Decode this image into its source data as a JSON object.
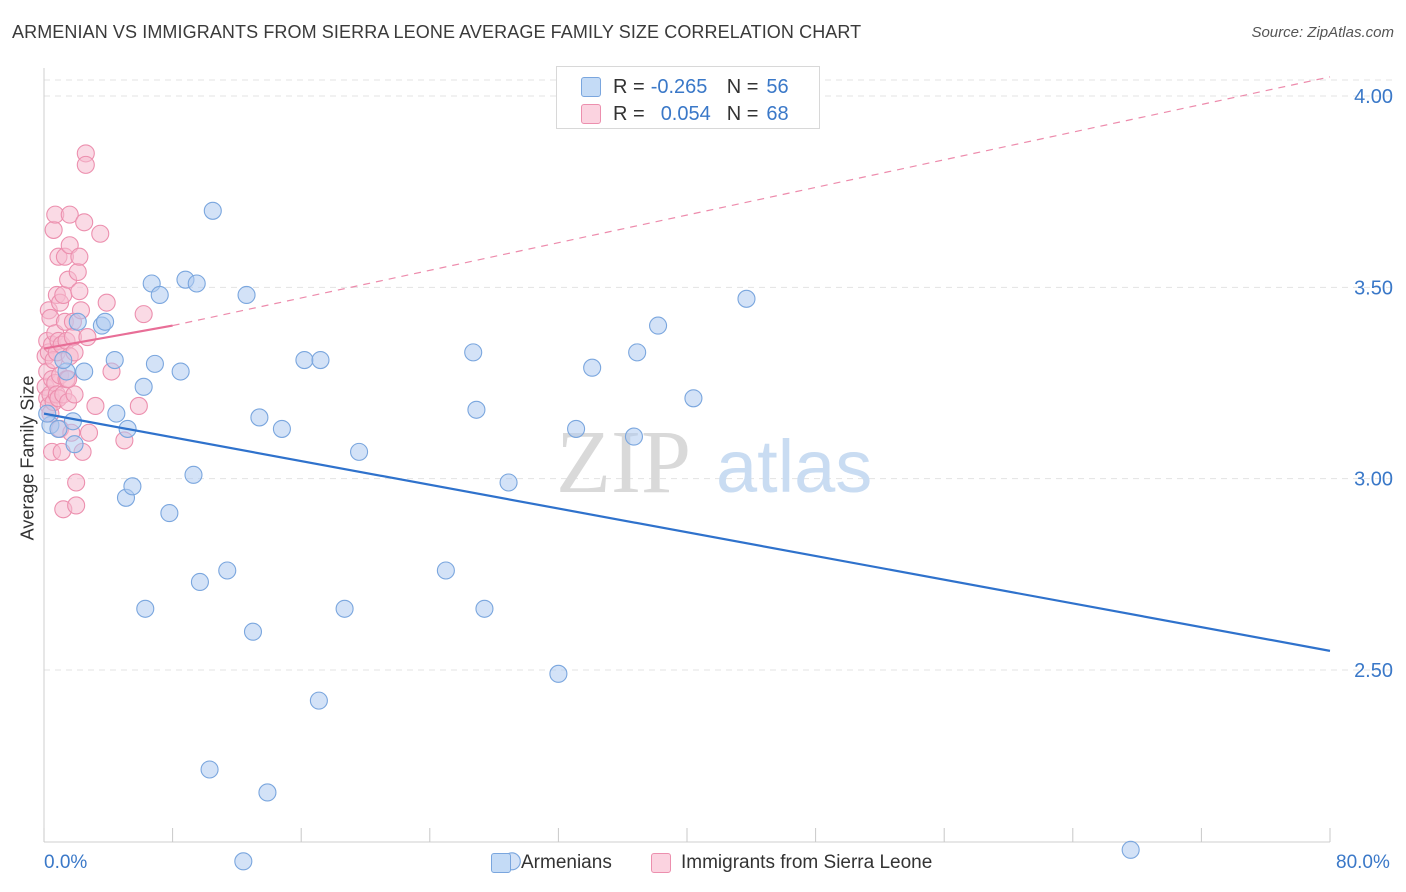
{
  "header": {
    "title": "ARMENIAN VS IMMIGRANTS FROM SIERRA LEONE AVERAGE FAMILY SIZE CORRELATION CHART",
    "source": "Source: ZipAtlas.com"
  },
  "legend_box": {
    "rows": [
      {
        "r_label": "R =",
        "r_value": "-0.265",
        "n_label": "N =",
        "n_value": "56"
      },
      {
        "r_label": "R =",
        "r_value": "0.054",
        "n_label": "N =",
        "n_value": "68"
      }
    ]
  },
  "bottom_legend": {
    "items": [
      "Armenians",
      "Immigrants from Sierra Leone"
    ]
  },
  "axis": {
    "x_min_label": "0.0%",
    "x_max_label": "80.0%",
    "y_label": "Average Family Size"
  },
  "watermark": {
    "zip": "ZIP",
    "atlas": "atlas"
  },
  "colors": {
    "blue_fill": "#aecbf0",
    "blue_stroke": "#7aa6de",
    "blue_line": "#2f72cc",
    "pink_fill": "#f6bcd0",
    "pink_stroke": "#ec8fae",
    "pink_line": "#e86e97",
    "axis_text": "#3a78c8",
    "grid": "#e3e3e3"
  },
  "chart_data": {
    "type": "scatter",
    "title": "ARMENIAN VS IMMIGRANTS FROM SIERRA LEONE AVERAGE FAMILY SIZE CORRELATION CHART",
    "xlabel": "",
    "ylabel": "Average Family Size",
    "xlim": [
      0,
      80
    ],
    "ylim": [
      2.0,
      4.05
    ],
    "x_unit": "%",
    "y_ticks": [
      2.5,
      3.0,
      3.5,
      4.0
    ],
    "y_tick_labels": [
      "2.50",
      "3.00",
      "3.50",
      "4.00"
    ],
    "grid": true,
    "legend_position": "top-center",
    "series": [
      {
        "name": "Armenians",
        "r": -0.265,
        "n": 56,
        "trend": {
          "x0": 0,
          "y0": 3.17,
          "x1": 80,
          "y1": 2.55,
          "style": "solid"
        },
        "points": [
          [
            0.4,
            3.14
          ],
          [
            0.9,
            3.13
          ],
          [
            1.4,
            3.28
          ],
          [
            1.8,
            3.15
          ],
          [
            1.9,
            3.09
          ],
          [
            2.1,
            3.41
          ],
          [
            2.5,
            3.28
          ],
          [
            3.6,
            3.4
          ],
          [
            3.8,
            3.41
          ],
          [
            4.4,
            3.31
          ],
          [
            4.5,
            3.17
          ],
          [
            5.2,
            3.13
          ],
          [
            5.1,
            2.95
          ],
          [
            5.5,
            2.98
          ],
          [
            6.2,
            3.24
          ],
          [
            6.3,
            2.66
          ],
          [
            6.7,
            3.51
          ],
          [
            6.9,
            3.3
          ],
          [
            7.2,
            3.48
          ],
          [
            7.8,
            2.91
          ],
          [
            8.5,
            3.28
          ],
          [
            8.8,
            3.52
          ],
          [
            9.3,
            3.01
          ],
          [
            9.5,
            3.51
          ],
          [
            9.7,
            2.73
          ],
          [
            10.3,
            2.24
          ],
          [
            10.5,
            3.7
          ],
          [
            11.4,
            2.76
          ],
          [
            12.4,
            2.0
          ],
          [
            12.6,
            3.48
          ],
          [
            13.0,
            2.6
          ],
          [
            13.4,
            3.16
          ],
          [
            13.9,
            2.18
          ],
          [
            14.8,
            3.13
          ],
          [
            16.2,
            3.31
          ],
          [
            17.2,
            3.31
          ],
          [
            17.1,
            2.42
          ],
          [
            18.7,
            2.66
          ],
          [
            19.6,
            3.07
          ],
          [
            25.0,
            2.76
          ],
          [
            26.7,
            3.33
          ],
          [
            26.9,
            3.18
          ],
          [
            27.4,
            2.66
          ],
          [
            28.9,
            2.99
          ],
          [
            29.1,
            2.0
          ],
          [
            32.0,
            2.49
          ],
          [
            33.1,
            3.13
          ],
          [
            34.1,
            3.29
          ],
          [
            36.7,
            3.11
          ],
          [
            36.9,
            3.33
          ],
          [
            38.2,
            3.4
          ],
          [
            40.4,
            3.21
          ],
          [
            43.7,
            3.47
          ],
          [
            67.6,
            2.03
          ],
          [
            0.2,
            3.17
          ],
          [
            1.2,
            3.31
          ]
        ]
      },
      {
        "name": "Immigrants from Sierra Leone",
        "r": 0.054,
        "n": 68,
        "trend": {
          "x0": 0,
          "y0": 3.34,
          "x1": 8,
          "y1": 3.4,
          "x2": 80,
          "y2": 4.05,
          "style": "solid-then-dashed"
        },
        "points": [
          [
            0.1,
            3.32
          ],
          [
            0.1,
            3.24
          ],
          [
            0.2,
            3.21
          ],
          [
            0.2,
            3.28
          ],
          [
            0.2,
            3.36
          ],
          [
            0.3,
            3.19
          ],
          [
            0.3,
            3.44
          ],
          [
            0.3,
            3.33
          ],
          [
            0.4,
            3.17
          ],
          [
            0.4,
            3.22
          ],
          [
            0.4,
            3.42
          ],
          [
            0.5,
            3.26
          ],
          [
            0.5,
            3.35
          ],
          [
            0.5,
            3.07
          ],
          [
            0.6,
            3.65
          ],
          [
            0.6,
            3.2
          ],
          [
            0.6,
            3.31
          ],
          [
            0.7,
            3.69
          ],
          [
            0.7,
            3.38
          ],
          [
            0.7,
            3.25
          ],
          [
            0.8,
            3.48
          ],
          [
            0.8,
            3.22
          ],
          [
            0.8,
            3.33
          ],
          [
            0.9,
            3.58
          ],
          [
            0.9,
            3.36
          ],
          [
            0.9,
            3.21
          ],
          [
            1.0,
            3.46
          ],
          [
            1.0,
            3.27
          ],
          [
            1.0,
            3.13
          ],
          [
            1.1,
            3.35
          ],
          [
            1.1,
            3.07
          ],
          [
            1.2,
            3.22
          ],
          [
            1.2,
            2.92
          ],
          [
            1.2,
            3.48
          ],
          [
            1.3,
            3.41
          ],
          [
            1.3,
            3.58
          ],
          [
            1.4,
            3.26
          ],
          [
            1.4,
            3.36
          ],
          [
            1.5,
            3.52
          ],
          [
            1.5,
            3.2
          ],
          [
            1.6,
            3.69
          ],
          [
            1.6,
            3.32
          ],
          [
            1.6,
            3.61
          ],
          [
            1.7,
            3.12
          ],
          [
            1.8,
            3.41
          ],
          [
            1.8,
            3.37
          ],
          [
            1.9,
            3.22
          ],
          [
            1.9,
            3.33
          ],
          [
            2.0,
            2.99
          ],
          [
            2.0,
            2.93
          ],
          [
            2.1,
            3.54
          ],
          [
            2.2,
            3.49
          ],
          [
            2.2,
            3.58
          ],
          [
            2.3,
            3.44
          ],
          [
            2.4,
            3.07
          ],
          [
            2.5,
            3.67
          ],
          [
            2.6,
            3.85
          ],
          [
            2.6,
            3.82
          ],
          [
            2.7,
            3.37
          ],
          [
            2.8,
            3.12
          ],
          [
            3.2,
            3.19
          ],
          [
            3.5,
            3.64
          ],
          [
            3.9,
            3.46
          ],
          [
            4.2,
            3.28
          ],
          [
            5.0,
            3.1
          ],
          [
            5.9,
            3.19
          ],
          [
            6.2,
            3.43
          ],
          [
            1.5,
            3.26
          ]
        ]
      }
    ]
  }
}
